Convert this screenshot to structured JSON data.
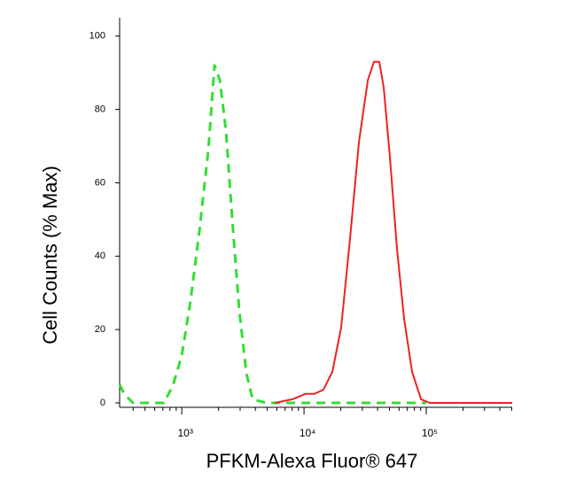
{
  "chart_data": {
    "type": "line",
    "x_label": "PFKM-Alexa Fluor® 647",
    "y_label": "Cell Counts (% Max)",
    "xscale": "log",
    "xlim": [
      310,
      505000
    ],
    "ylim": [
      -1.2,
      105
    ],
    "xticks": [
      {
        "value": 1000,
        "label": "10³"
      },
      {
        "value": 10000,
        "label": "10⁴"
      },
      {
        "value": 100000,
        "label": "10⁵"
      }
    ],
    "xminorticks": [
      400,
      500,
      600,
      700,
      800,
      900,
      2000,
      3000,
      4000,
      5000,
      6000,
      7000,
      8000,
      9000,
      20000,
      30000,
      40000,
      50000,
      60000,
      70000,
      80000,
      90000,
      200000,
      300000,
      400000,
      500000
    ],
    "yticks": [
      0,
      20,
      40,
      60,
      80,
      100
    ],
    "grid": false,
    "series": [
      {
        "color": "#33dd33",
        "dash": true,
        "x": [
          310,
          338,
          399,
          716,
          847,
          1000,
          1181,
          1396,
          1649,
          1854,
          2049,
          2303,
          2588,
          2958,
          3381,
          3800,
          4876,
          100000
        ],
        "values": [
          5,
          2.4,
          0,
          0,
          4.8,
          13,
          28,
          47,
          69,
          92,
          88,
          74,
          50,
          25,
          8,
          1,
          0,
          0
        ]
      },
      {
        "color": "#ee2222",
        "dash": false,
        "x": [
          5770,
          8050,
          10330,
          12200,
          14420,
          17060,
          20140,
          23820,
          28120,
          33260,
          37330,
          41270,
          44870,
          50470,
          57680,
          65920,
          76560,
          90560,
          106900,
          505000
        ],
        "values": [
          0,
          1,
          2.5,
          2.5,
          3.6,
          8.5,
          20.6,
          45,
          71,
          88,
          93,
          93,
          86,
          67,
          42,
          23,
          8.5,
          1,
          0,
          0
        ]
      }
    ]
  }
}
